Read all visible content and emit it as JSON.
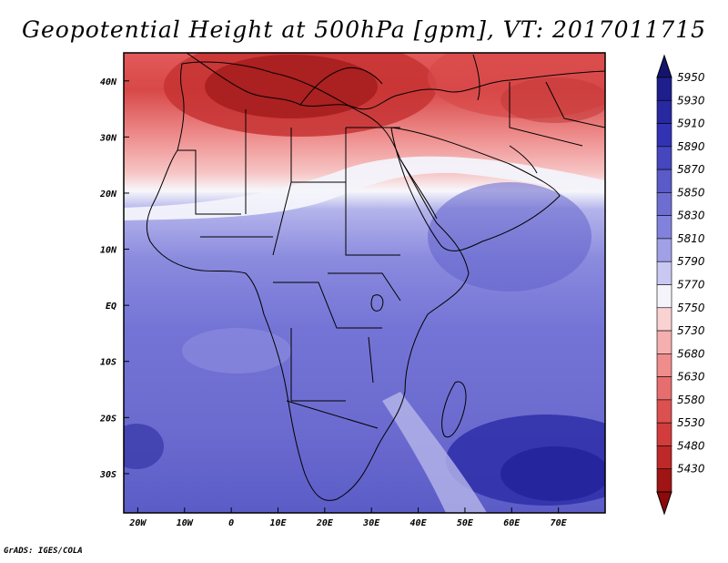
{
  "title": "Geopotential Height at 500hPa [gpm], VT: 2017011715",
  "credit": "GrADS: IGES/COLA",
  "map": {
    "lon_range": [
      -23,
      80
    ],
    "lat_range": [
      -37,
      45
    ],
    "x_ticks": [
      {
        "lon": -20,
        "label": "20W"
      },
      {
        "lon": -10,
        "label": "10W"
      },
      {
        "lon": 0,
        "label": "0"
      },
      {
        "lon": 10,
        "label": "10E"
      },
      {
        "lon": 20,
        "label": "20E"
      },
      {
        "lon": 30,
        "label": "30E"
      },
      {
        "lon": 40,
        "label": "40E"
      },
      {
        "lon": 50,
        "label": "50E"
      },
      {
        "lon": 60,
        "label": "60E"
      },
      {
        "lon": 70,
        "label": "70E"
      }
    ],
    "y_ticks": [
      {
        "lat": 40,
        "label": "40N"
      },
      {
        "lat": 30,
        "label": "30N"
      },
      {
        "lat": 20,
        "label": "20N"
      },
      {
        "lat": 10,
        "label": "10N"
      },
      {
        "lat": 0,
        "label": "EQ"
      },
      {
        "lat": -10,
        "label": "10S"
      },
      {
        "lat": -20,
        "label": "20S"
      },
      {
        "lat": -30,
        "label": "30S"
      }
    ]
  },
  "colorbar": {
    "levels": [
      {
        "label": "5950",
        "color": "#1e1e8c"
      },
      {
        "label": "5930",
        "color": "#2828a0"
      },
      {
        "label": "5910",
        "color": "#3232b4"
      },
      {
        "label": "5890",
        "color": "#4646be"
      },
      {
        "label": "5870",
        "color": "#5a5ac8"
      },
      {
        "label": "5850",
        "color": "#6e6ed2"
      },
      {
        "label": "5830",
        "color": "#8282dc"
      },
      {
        "label": "5810",
        "color": "#a0a0e6"
      },
      {
        "label": "5790",
        "color": "#c8c8f2"
      },
      {
        "label": "5770",
        "color": "#f4f4fa"
      },
      {
        "label": "5750",
        "color": "#fad2d2"
      },
      {
        "label": "5730",
        "color": "#f5afaf"
      },
      {
        "label": "5680",
        "color": "#ef8c8c"
      },
      {
        "label": "5630",
        "color": "#e66e6e"
      },
      {
        "label": "5580",
        "color": "#dc5050"
      },
      {
        "label": "5530",
        "color": "#d23c3c"
      },
      {
        "label": "5480",
        "color": "#be2828"
      },
      {
        "label": "5430",
        "color": "#a01414"
      }
    ],
    "top_arrow_color": "#14146e",
    "bottom_arrow_color": "#8c0a0a"
  }
}
